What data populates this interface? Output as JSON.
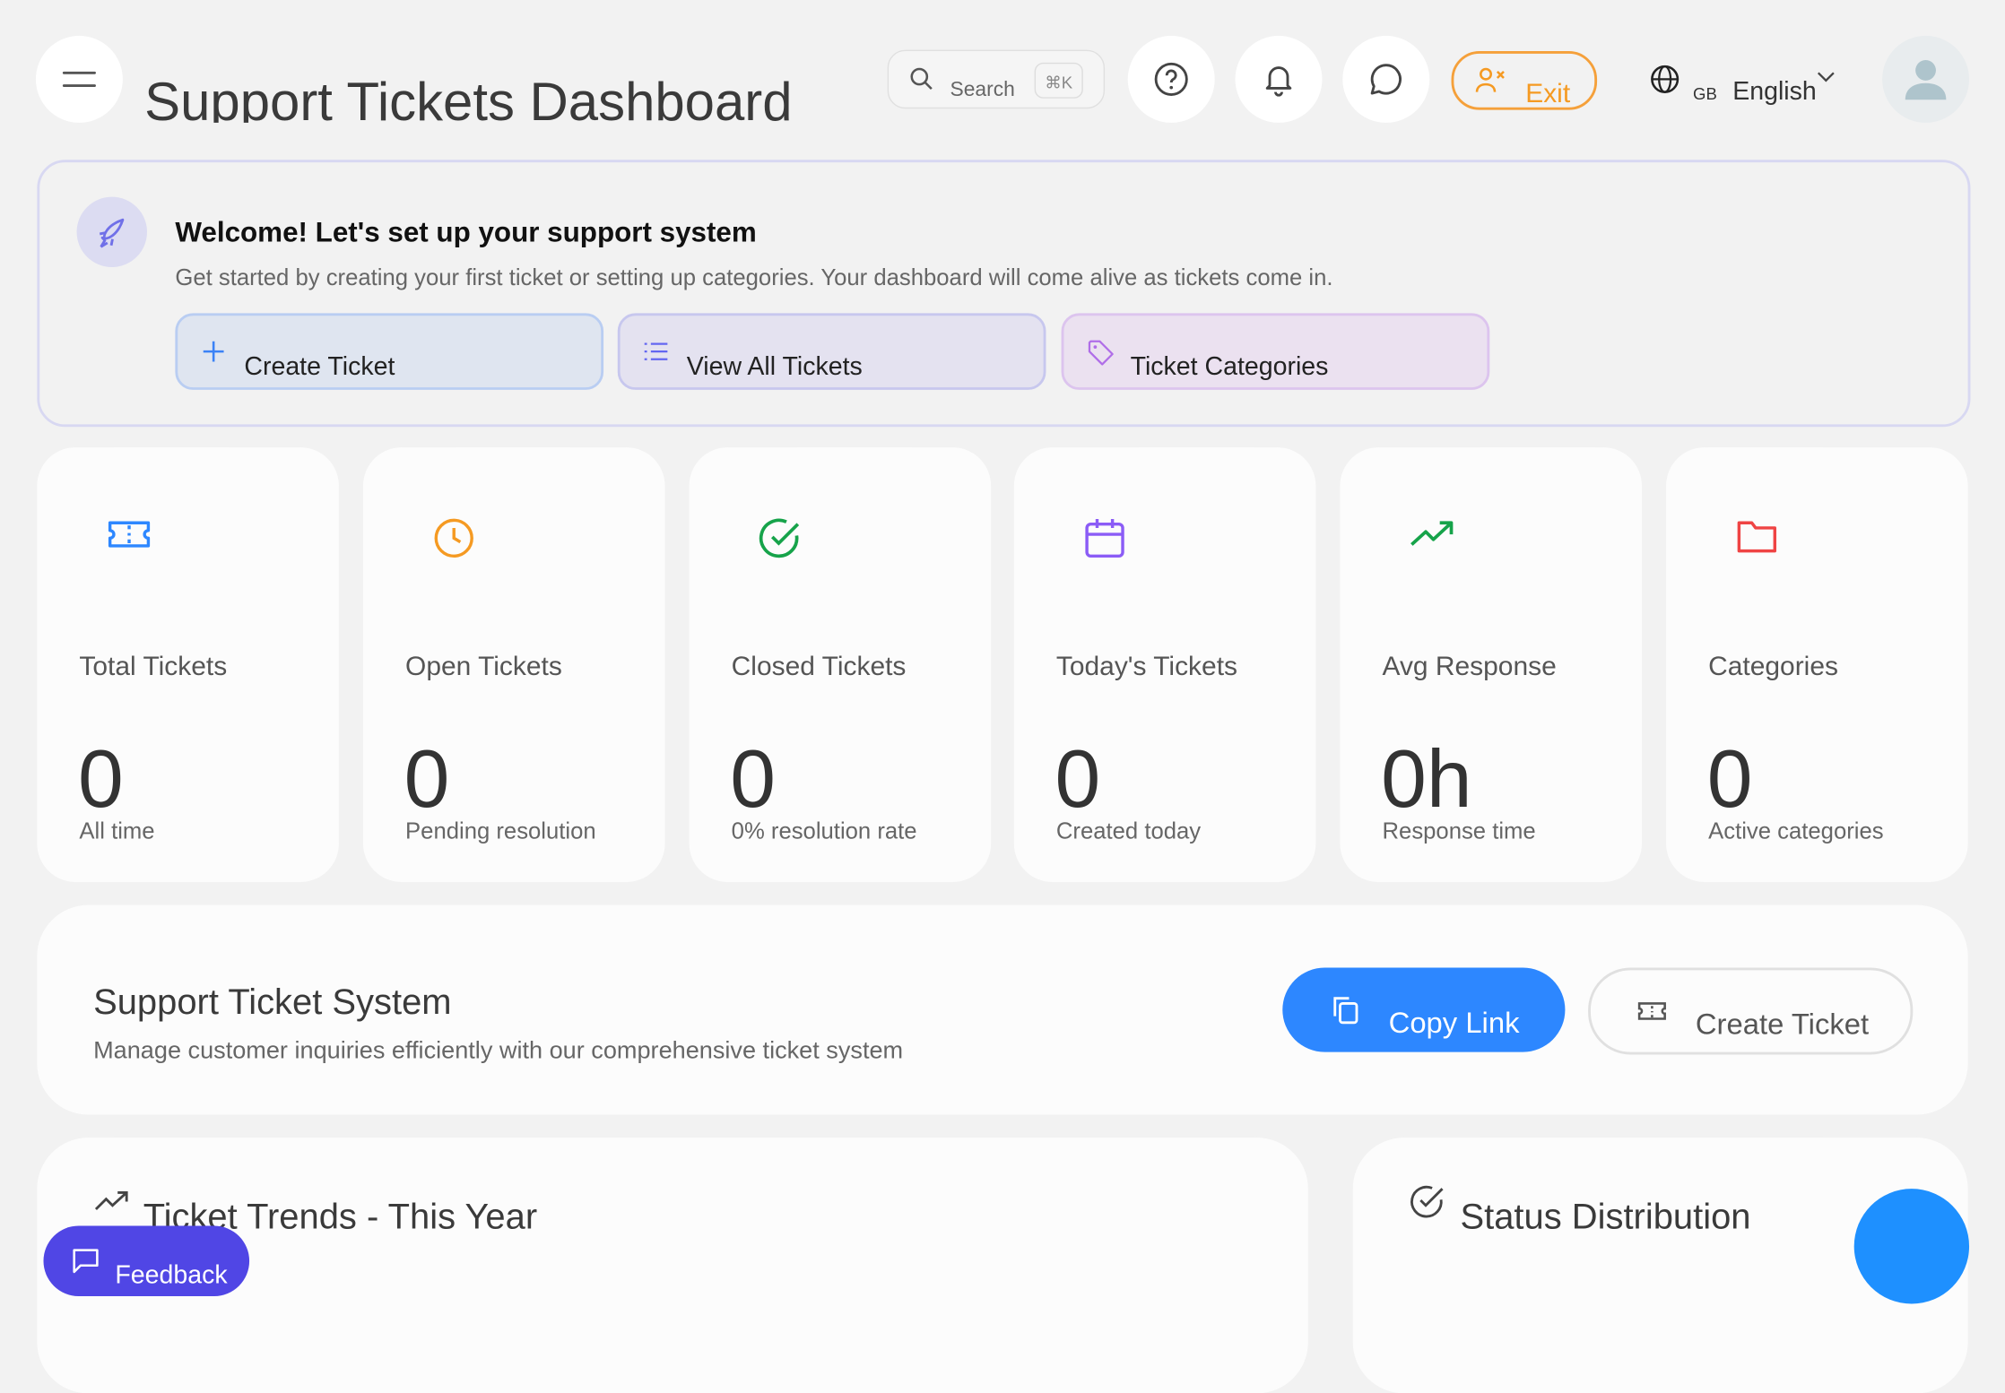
{
  "header": {
    "title": "Support Tickets Dashboard",
    "search": {
      "placeholder": "Search",
      "shortcut": "⌘K"
    },
    "exit_label": "Exit",
    "language": {
      "flag": "GB",
      "label": "English"
    }
  },
  "welcome": {
    "heading": "Welcome! Let's set up your support system",
    "subtitle": "Get started by creating your first ticket or setting up categories. Your dashboard will come alive as tickets come in.",
    "buttons": [
      {
        "label": "Create Ticket",
        "icon": "plus-icon"
      },
      {
        "label": "View All Tickets",
        "icon": "list-icon"
      },
      {
        "label": "Ticket Categories",
        "icon": "tag-icon"
      }
    ]
  },
  "stats": [
    {
      "label": "Total Tickets",
      "value": "0",
      "sub": "All time",
      "icon": "ticket-icon",
      "color": "#2d87ff"
    },
    {
      "label": "Open Tickets",
      "value": "0",
      "sub": "Pending resolution",
      "icon": "clock-icon",
      "color": "#f59a22"
    },
    {
      "label": "Closed Tickets",
      "value": "0",
      "sub": "0% resolution rate",
      "icon": "check-circle-icon",
      "color": "#16a34a"
    },
    {
      "label": "Today's Tickets",
      "value": "0",
      "sub": "Created today",
      "icon": "calendar-icon",
      "color": "#8b5cf6"
    },
    {
      "label": "Avg Response",
      "value": "0h",
      "sub": "Response time",
      "icon": "trending-up-icon",
      "color": "#16a34a"
    },
    {
      "label": "Categories",
      "value": "0",
      "sub": "Active categories",
      "icon": "folder-icon",
      "color": "#ef4444"
    }
  ],
  "system": {
    "title": "Support Ticket System",
    "subtitle": "Manage customer inquiries efficiently with our comprehensive ticket system",
    "copy_label": "Copy Link",
    "create_label": "Create Ticket"
  },
  "trends": {
    "title": "Ticket Trends - This Year"
  },
  "status": {
    "title": "Status Distribution"
  },
  "feedback_label": "Feedback"
}
